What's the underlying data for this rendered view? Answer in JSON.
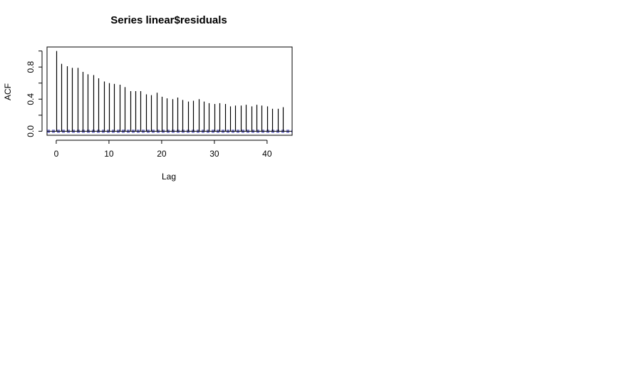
{
  "chart_data": {
    "type": "bar",
    "title": "Series  linear$residuals",
    "xlabel": "Lag",
    "ylabel": "ACF",
    "xlim": [
      -1.75,
      44.75
    ],
    "ylim": [
      -0.05,
      1.05
    ],
    "x_ticks": [
      0,
      10,
      20,
      30,
      40
    ],
    "x_tick_labels": [
      "0",
      "10",
      "20",
      "30",
      "40"
    ],
    "y_ticks": [
      0.0,
      0.2,
      0.4,
      0.6,
      0.8,
      1.0
    ],
    "y_tick_labels": [
      "0.0",
      "0.4",
      "0.8"
    ],
    "y_labeled_ticks": [
      0.0,
      0.4,
      0.8
    ],
    "confidence_band": 0.012,
    "confidence_color": "#1f1fa8",
    "x": [
      0,
      1,
      2,
      3,
      4,
      5,
      6,
      7,
      8,
      9,
      10,
      11,
      12,
      13,
      14,
      15,
      16,
      17,
      18,
      19,
      20,
      21,
      22,
      23,
      24,
      25,
      26,
      27,
      28,
      29,
      30,
      31,
      32,
      33,
      34,
      35,
      36,
      37,
      38,
      39,
      40,
      41,
      42,
      43
    ],
    "values": [
      1.0,
      0.84,
      0.81,
      0.79,
      0.79,
      0.74,
      0.71,
      0.7,
      0.66,
      0.62,
      0.6,
      0.59,
      0.58,
      0.55,
      0.5,
      0.5,
      0.5,
      0.46,
      0.45,
      0.48,
      0.43,
      0.41,
      0.4,
      0.42,
      0.39,
      0.37,
      0.38,
      0.4,
      0.37,
      0.35,
      0.34,
      0.35,
      0.34,
      0.31,
      0.32,
      0.32,
      0.33,
      0.31,
      0.33,
      0.32,
      0.31,
      0.28,
      0.28,
      0.3
    ]
  }
}
